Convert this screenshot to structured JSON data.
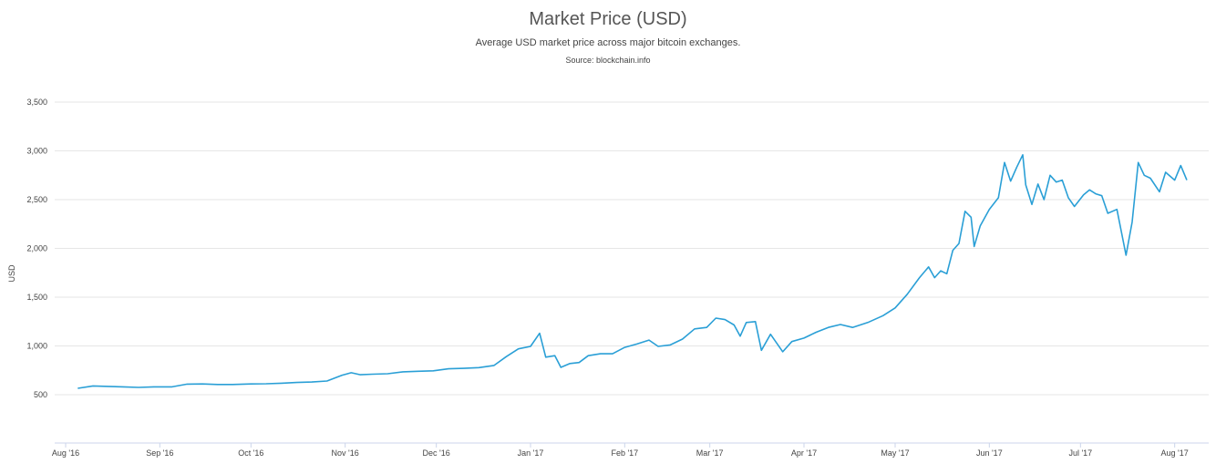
{
  "chart_data": {
    "type": "line",
    "title": "Market Price (USD)",
    "subtitle": "Average USD market price across major bitcoin exchanges.",
    "source": "Source: blockchain.info",
    "ylabel": "USD",
    "xlabel": "",
    "ylim": [
      0,
      3500
    ],
    "yticks": [
      500,
      1000,
      1500,
      2000,
      2500,
      3000,
      3500
    ],
    "ytick_labels": [
      "500",
      "1,000",
      "1,500",
      "2,000",
      "2,500",
      "3,000",
      "3,500"
    ],
    "xlim": [
      "2016-08-01",
      "2017-08-08"
    ],
    "xticks": [
      {
        "date": "2016-08-01",
        "label": "Aug '16"
      },
      {
        "date": "2016-09-01",
        "label": "Sep '16"
      },
      {
        "date": "2016-10-01",
        "label": "Oct '16"
      },
      {
        "date": "2016-11-01",
        "label": "Nov '16"
      },
      {
        "date": "2016-12-01",
        "label": "Dec '16"
      },
      {
        "date": "2017-01-01",
        "label": "Jan '17"
      },
      {
        "date": "2017-02-01",
        "label": "Feb '17"
      },
      {
        "date": "2017-03-01",
        "label": "Mar '17"
      },
      {
        "date": "2017-04-01",
        "label": "Apr '17"
      },
      {
        "date": "2017-05-01",
        "label": "May '17"
      },
      {
        "date": "2017-06-01",
        "label": "Jun '17"
      },
      {
        "date": "2017-07-01",
        "label": "Jul '17"
      },
      {
        "date": "2017-08-01",
        "label": "Aug '17"
      }
    ],
    "grid": true,
    "line_color": "#2a9fd6",
    "series": [
      {
        "values": [
          [
            "2016-08-05",
            565
          ],
          [
            "2016-08-10",
            590
          ],
          [
            "2016-08-15",
            585
          ],
          [
            "2016-08-20",
            580
          ],
          [
            "2016-08-25",
            575
          ],
          [
            "2016-08-30",
            580
          ],
          [
            "2016-09-05",
            580
          ],
          [
            "2016-09-10",
            608
          ],
          [
            "2016-09-15",
            610
          ],
          [
            "2016-09-20",
            605
          ],
          [
            "2016-09-25",
            605
          ],
          [
            "2016-10-01",
            610
          ],
          [
            "2016-10-06",
            612
          ],
          [
            "2016-10-11",
            618
          ],
          [
            "2016-10-16",
            625
          ],
          [
            "2016-10-21",
            630
          ],
          [
            "2016-10-26",
            640
          ],
          [
            "2016-10-31",
            700
          ],
          [
            "2016-11-03",
            725
          ],
          [
            "2016-11-06",
            705
          ],
          [
            "2016-11-10",
            710
          ],
          [
            "2016-11-15",
            715
          ],
          [
            "2016-11-20",
            735
          ],
          [
            "2016-11-25",
            740
          ],
          [
            "2016-11-30",
            745
          ],
          [
            "2016-12-05",
            765
          ],
          [
            "2016-12-10",
            770
          ],
          [
            "2016-12-15",
            778
          ],
          [
            "2016-12-20",
            800
          ],
          [
            "2016-12-24",
            890
          ],
          [
            "2016-12-28",
            970
          ],
          [
            "2017-01-01",
            995
          ],
          [
            "2017-01-04",
            1130
          ],
          [
            "2017-01-06",
            885
          ],
          [
            "2017-01-09",
            900
          ],
          [
            "2017-01-11",
            780
          ],
          [
            "2017-01-14",
            820
          ],
          [
            "2017-01-17",
            830
          ],
          [
            "2017-01-20",
            900
          ],
          [
            "2017-01-24",
            920
          ],
          [
            "2017-01-28",
            920
          ],
          [
            "2017-02-01",
            985
          ],
          [
            "2017-02-05",
            1020
          ],
          [
            "2017-02-09",
            1060
          ],
          [
            "2017-02-12",
            995
          ],
          [
            "2017-02-16",
            1010
          ],
          [
            "2017-02-20",
            1070
          ],
          [
            "2017-02-24",
            1175
          ],
          [
            "2017-02-28",
            1190
          ],
          [
            "2017-03-03",
            1285
          ],
          [
            "2017-03-06",
            1270
          ],
          [
            "2017-03-09",
            1215
          ],
          [
            "2017-03-11",
            1100
          ],
          [
            "2017-03-13",
            1240
          ],
          [
            "2017-03-16",
            1250
          ],
          [
            "2017-03-18",
            955
          ],
          [
            "2017-03-21",
            1120
          ],
          [
            "2017-03-23",
            1030
          ],
          [
            "2017-03-25",
            940
          ],
          [
            "2017-03-28",
            1045
          ],
          [
            "2017-04-01",
            1080
          ],
          [
            "2017-04-05",
            1140
          ],
          [
            "2017-04-09",
            1190
          ],
          [
            "2017-04-13",
            1220
          ],
          [
            "2017-04-17",
            1190
          ],
          [
            "2017-04-22",
            1240
          ],
          [
            "2017-04-27",
            1310
          ],
          [
            "2017-05-01",
            1390
          ],
          [
            "2017-05-05",
            1530
          ],
          [
            "2017-05-09",
            1700
          ],
          [
            "2017-05-12",
            1810
          ],
          [
            "2017-05-14",
            1700
          ],
          [
            "2017-05-16",
            1770
          ],
          [
            "2017-05-18",
            1740
          ],
          [
            "2017-05-20",
            1980
          ],
          [
            "2017-05-22",
            2050
          ],
          [
            "2017-05-24",
            2380
          ],
          [
            "2017-05-26",
            2320
          ],
          [
            "2017-05-27",
            2020
          ],
          [
            "2017-05-29",
            2230
          ],
          [
            "2017-06-01",
            2400
          ],
          [
            "2017-06-04",
            2520
          ],
          [
            "2017-06-06",
            2880
          ],
          [
            "2017-06-08",
            2690
          ],
          [
            "2017-06-10",
            2830
          ],
          [
            "2017-06-12",
            2960
          ],
          [
            "2017-06-13",
            2650
          ],
          [
            "2017-06-15",
            2450
          ],
          [
            "2017-06-17",
            2660
          ],
          [
            "2017-06-19",
            2500
          ],
          [
            "2017-06-21",
            2750
          ],
          [
            "2017-06-23",
            2680
          ],
          [
            "2017-06-25",
            2700
          ],
          [
            "2017-06-27",
            2520
          ],
          [
            "2017-06-29",
            2430
          ],
          [
            "2017-07-02",
            2550
          ],
          [
            "2017-07-04",
            2600
          ],
          [
            "2017-07-06",
            2560
          ],
          [
            "2017-07-08",
            2540
          ],
          [
            "2017-07-10",
            2360
          ],
          [
            "2017-07-13",
            2400
          ],
          [
            "2017-07-16",
            1930
          ],
          [
            "2017-07-18",
            2270
          ],
          [
            "2017-07-20",
            2880
          ],
          [
            "2017-07-22",
            2750
          ],
          [
            "2017-07-24",
            2720
          ],
          [
            "2017-07-27",
            2580
          ],
          [
            "2017-07-29",
            2780
          ],
          [
            "2017-08-01",
            2700
          ],
          [
            "2017-08-03",
            2850
          ],
          [
            "2017-08-05",
            2700
          ]
        ]
      }
    ]
  }
}
